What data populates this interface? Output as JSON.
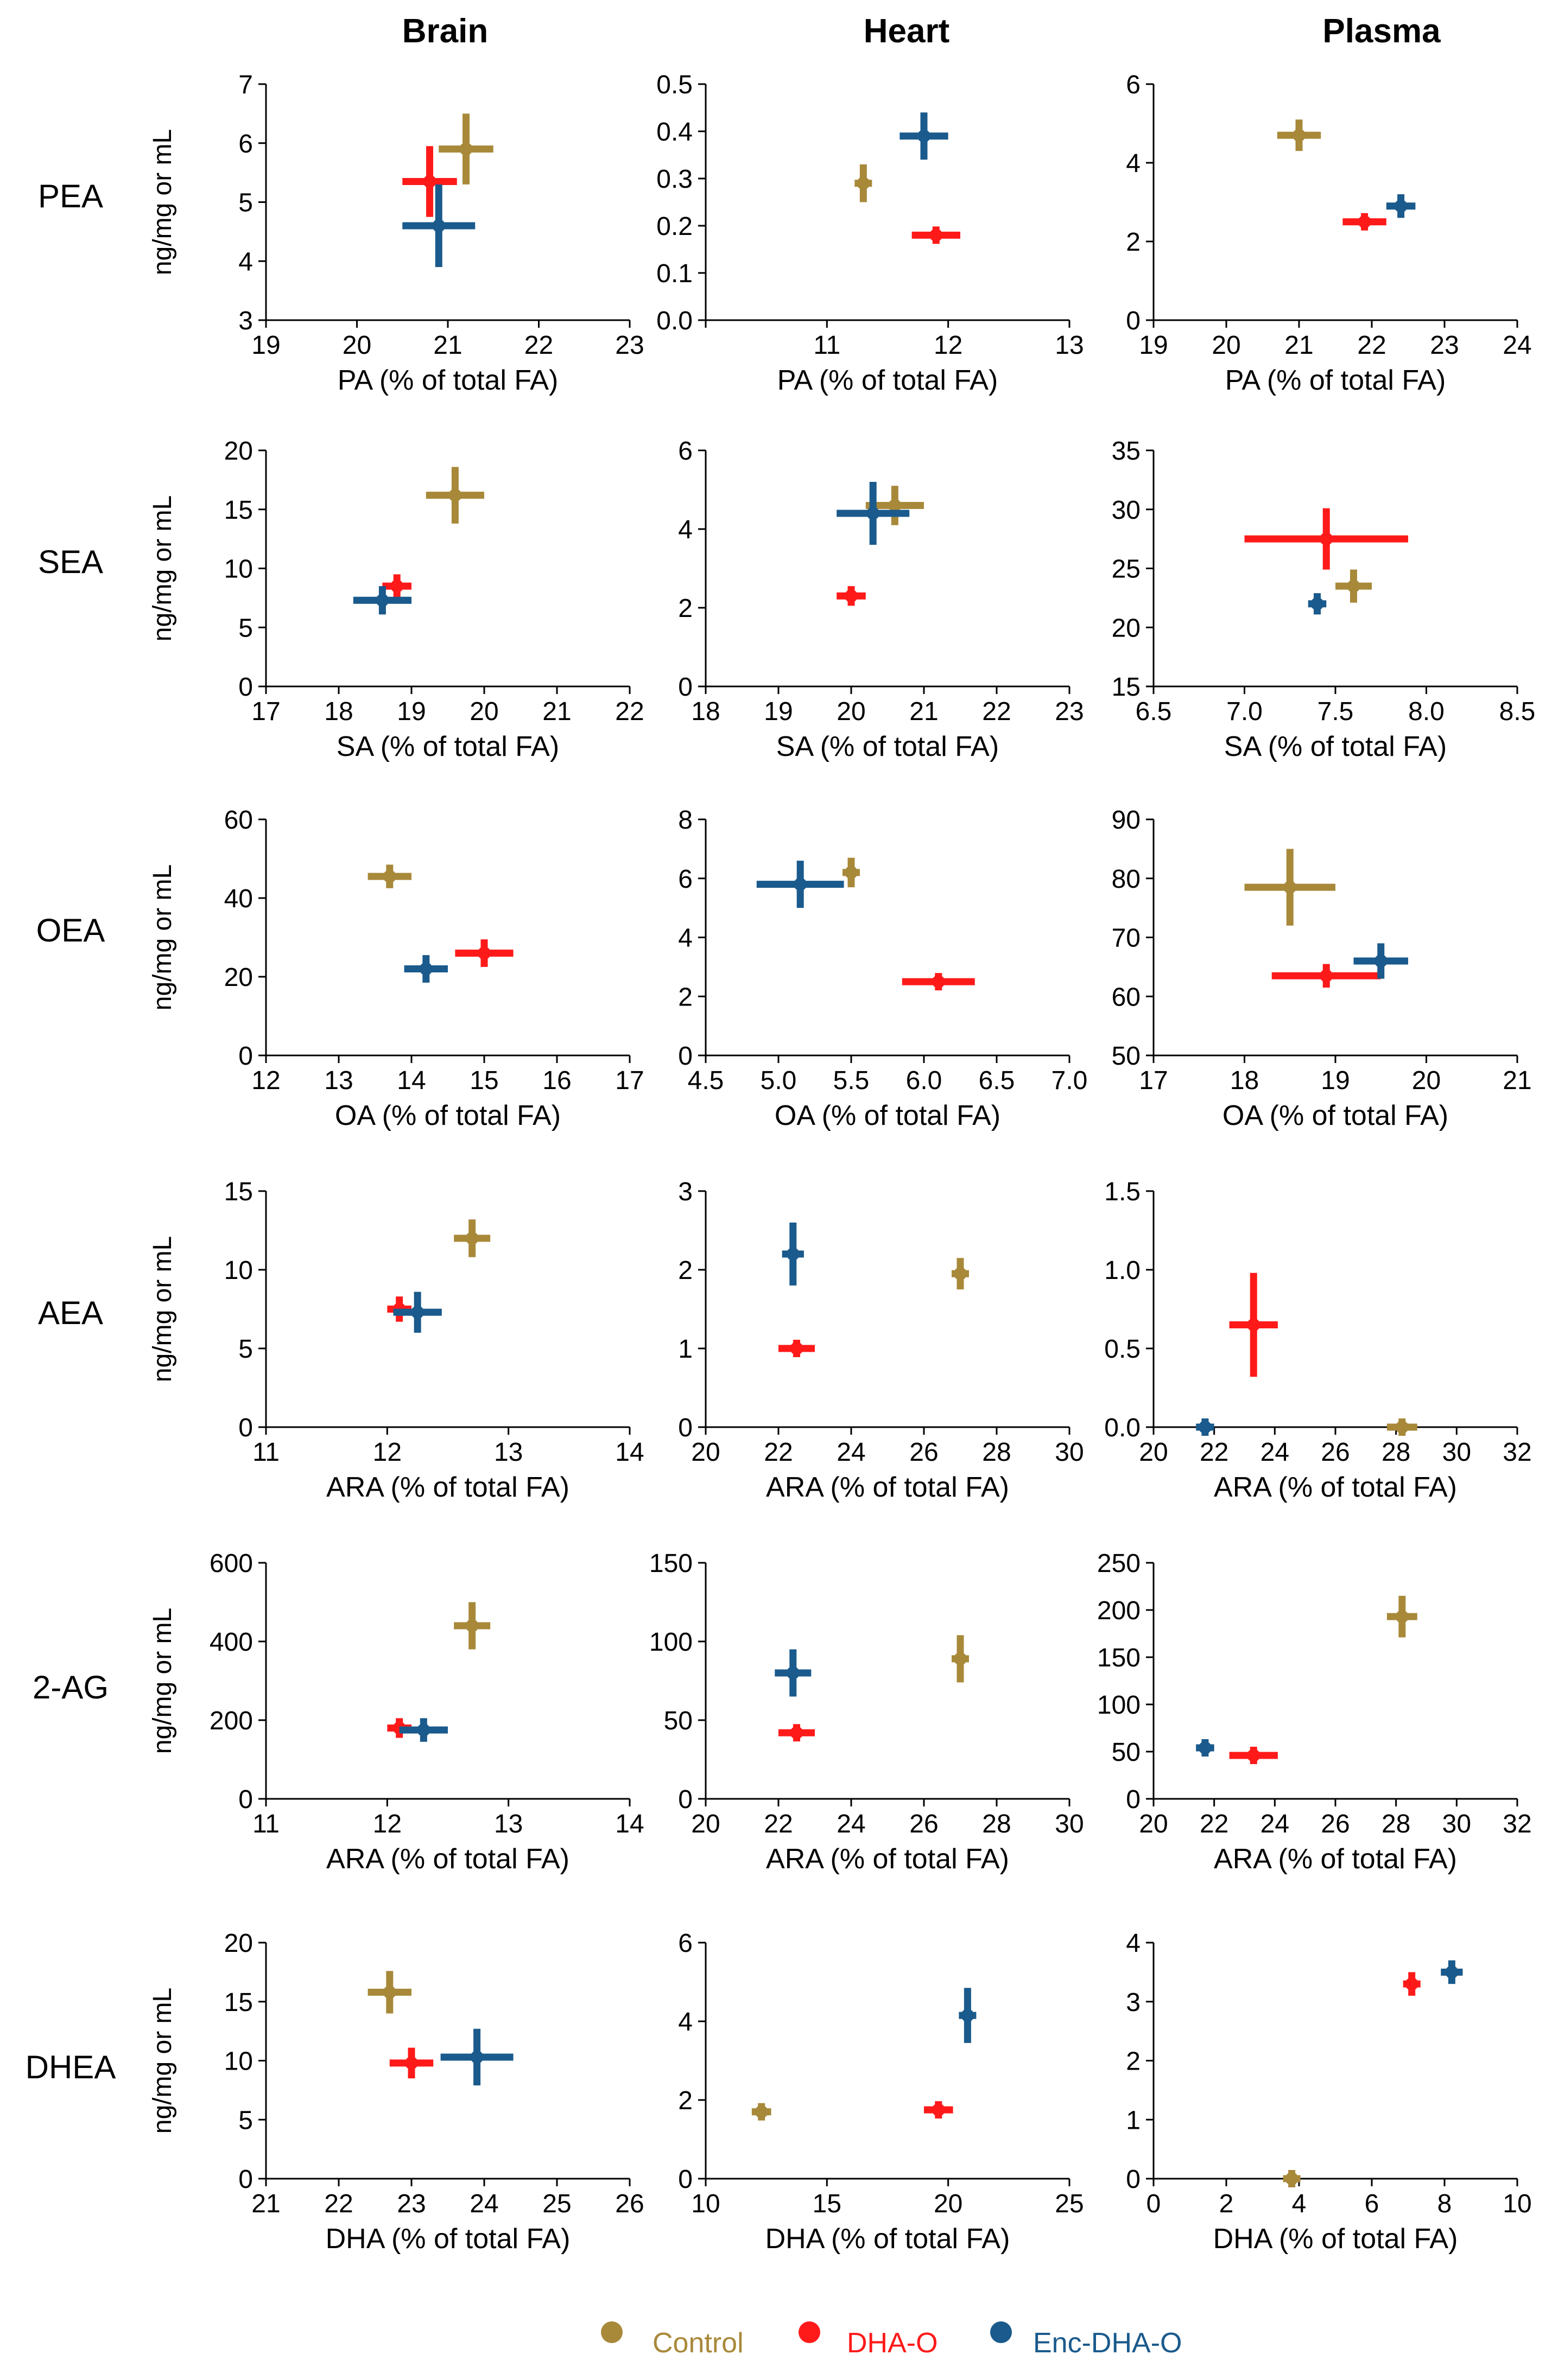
{
  "figure": {
    "column_headers": [
      "Brain",
      "Heart",
      "Plasma"
    ],
    "row_headers": [
      "PEA",
      "SEA",
      "OEA",
      "AEA",
      "2-AG",
      "DHEA"
    ],
    "y_axis_label": "ng/mg or mL",
    "legend": [
      {
        "label": "Control",
        "color": "#a8893a"
      },
      {
        "label": "DHA-O",
        "color": "#ff1a1a"
      },
      {
        "label": "Enc-DHA-O",
        "color": "#1a5a8c"
      }
    ]
  },
  "chart_data": [
    {
      "type": "scatter",
      "row": "PEA",
      "column": "Brain",
      "xlabel": "PA (% of total FA)",
      "ylabel": "ng/mg or mL",
      "xlim": [
        19,
        23
      ],
      "ylim": [
        3,
        7
      ],
      "xticks": [
        "19",
        "20",
        "21",
        "22",
        "23"
      ],
      "yticks": [
        "3",
        "4",
        "5",
        "6",
        "7"
      ],
      "series": [
        {
          "name": "Control",
          "x": 21.2,
          "y": 5.9,
          "xerr": 0.3,
          "yerr": 0.6
        },
        {
          "name": "DHA-O",
          "x": 20.8,
          "y": 5.35,
          "xerr": 0.3,
          "yerr": 0.6
        },
        {
          "name": "Enc-DHA-O",
          "x": 20.9,
          "y": 4.6,
          "xerr": 0.4,
          "yerr": 0.7
        }
      ]
    },
    {
      "type": "scatter",
      "row": "PEA",
      "column": "Heart",
      "xlabel": "PA (% of total FA)",
      "ylabel": "",
      "xlim": [
        10,
        13
      ],
      "ylim": [
        0,
        0.5
      ],
      "xticks": [
        "",
        "11",
        "12",
        "13"
      ],
      "yticks": [
        "0.0",
        "0.1",
        "0.2",
        "0.3",
        "0.4",
        "0.5"
      ],
      "series": [
        {
          "name": "Control",
          "x": 11.3,
          "y": 0.29,
          "xerr": 0.05,
          "yerr": 0.04
        },
        {
          "name": "DHA-O",
          "x": 11.9,
          "y": 0.18,
          "xerr": 0.2,
          "yerr": 0.015
        },
        {
          "name": "Enc-DHA-O",
          "x": 11.8,
          "y": 0.39,
          "xerr": 0.2,
          "yerr": 0.05
        }
      ]
    },
    {
      "type": "scatter",
      "row": "PEA",
      "column": "Plasma",
      "xlabel": "PA (% of total FA)",
      "ylabel": "",
      "xlim": [
        19,
        24
      ],
      "ylim": [
        0,
        6
      ],
      "xticks": [
        "19",
        "20",
        "21",
        "22",
        "23",
        "24"
      ],
      "yticks": [
        "0",
        "2",
        "4",
        "6"
      ],
      "series": [
        {
          "name": "Control",
          "x": 21.0,
          "y": 4.7,
          "xerr": 0.3,
          "yerr": 0.4
        },
        {
          "name": "DHA-O",
          "x": 21.9,
          "y": 2.5,
          "xerr": 0.3,
          "yerr": 0.2
        },
        {
          "name": "Enc-DHA-O",
          "x": 22.4,
          "y": 2.9,
          "xerr": 0.2,
          "yerr": 0.3
        }
      ]
    },
    {
      "type": "scatter",
      "row": "SEA",
      "column": "Brain",
      "xlabel": "SA (% of total FA)",
      "ylabel": "ng/mg or mL",
      "xlim": [
        17,
        22
      ],
      "ylim": [
        0,
        20
      ],
      "xticks": [
        "17",
        "18",
        "19",
        "20",
        "21",
        "22"
      ],
      "yticks": [
        "0",
        "5",
        "10",
        "15",
        "20"
      ],
      "series": [
        {
          "name": "Control",
          "x": 19.6,
          "y": 16.2,
          "xerr": 0.4,
          "yerr": 2.4
        },
        {
          "name": "DHA-O",
          "x": 18.8,
          "y": 8.5,
          "xerr": 0.2,
          "yerr": 1.0
        },
        {
          "name": "Enc-DHA-O",
          "x": 18.6,
          "y": 7.3,
          "xerr": 0.4,
          "yerr": 1.2
        }
      ]
    },
    {
      "type": "scatter",
      "row": "SEA",
      "column": "Heart",
      "xlabel": "SA (% of total FA)",
      "ylabel": "",
      "xlim": [
        18,
        23
      ],
      "ylim": [
        0,
        6
      ],
      "xticks": [
        "18",
        "19",
        "20",
        "21",
        "22",
        "23"
      ],
      "yticks": [
        "0",
        "2",
        "4",
        "6"
      ],
      "series": [
        {
          "name": "Control",
          "x": 20.6,
          "y": 4.6,
          "xerr": 0.4,
          "yerr": 0.5
        },
        {
          "name": "DHA-O",
          "x": 20.0,
          "y": 2.3,
          "xerr": 0.2,
          "yerr": 0.25
        },
        {
          "name": "Enc-DHA-O",
          "x": 20.3,
          "y": 4.4,
          "xerr": 0.5,
          "yerr": 0.8
        }
      ]
    },
    {
      "type": "scatter",
      "row": "SEA",
      "column": "Plasma",
      "xlabel": "SA (% of total FA)",
      "ylabel": "",
      "xlim": [
        6.5,
        8.5
      ],
      "ylim": [
        15,
        35
      ],
      "xticks": [
        "6.5",
        "7.0",
        "7.5",
        "8.0",
        "8.5"
      ],
      "yticks": [
        "15",
        "20",
        "25",
        "30",
        "35"
      ],
      "series": [
        {
          "name": "Control",
          "x": 7.6,
          "y": 23.5,
          "xerr": 0.1,
          "yerr": 1.4
        },
        {
          "name": "DHA-O",
          "x": 7.45,
          "y": 27.5,
          "xerr": 0.45,
          "yerr": 2.6
        },
        {
          "name": "Enc-DHA-O",
          "x": 7.4,
          "y": 22.0,
          "xerr": 0.05,
          "yerr": 0.9
        }
      ]
    },
    {
      "type": "scatter",
      "row": "OEA",
      "column": "Brain",
      "xlabel": "OA (% of total FA)",
      "ylabel": "ng/mg or mL",
      "xlim": [
        12,
        17
      ],
      "ylim": [
        0,
        60
      ],
      "xticks": [
        "12",
        "13",
        "14",
        "15",
        "16",
        "17"
      ],
      "yticks": [
        "0",
        "20",
        "40",
        "60"
      ],
      "series": [
        {
          "name": "Control",
          "x": 13.7,
          "y": 45.5,
          "xerr": 0.3,
          "yerr": 3
        },
        {
          "name": "DHA-O",
          "x": 15.0,
          "y": 26,
          "xerr": 0.4,
          "yerr": 3.5
        },
        {
          "name": "Enc-DHA-O",
          "x": 14.2,
          "y": 22,
          "xerr": 0.3,
          "yerr": 3.5
        }
      ]
    },
    {
      "type": "scatter",
      "row": "OEA",
      "column": "Heart",
      "xlabel": "OA (% of total FA)",
      "ylabel": "",
      "xlim": [
        4.5,
        7.0
      ],
      "ylim": [
        0,
        8
      ],
      "xticks": [
        "4.5",
        "5.0",
        "5.5",
        "6.0",
        "6.5",
        "7.0"
      ],
      "yticks": [
        "0",
        "2",
        "4",
        "6",
        "8"
      ],
      "series": [
        {
          "name": "Control",
          "x": 5.5,
          "y": 6.2,
          "xerr": 0.05,
          "yerr": 0.5
        },
        {
          "name": "DHA-O",
          "x": 6.1,
          "y": 2.5,
          "xerr": 0.25,
          "yerr": 0.15
        },
        {
          "name": "Enc-DHA-O",
          "x": 5.15,
          "y": 5.8,
          "xerr": 0.3,
          "yerr": 0.8
        }
      ]
    },
    {
      "type": "scatter",
      "row": "OEA",
      "column": "Plasma",
      "xlabel": "OA (% of total FA)",
      "ylabel": "",
      "xlim": [
        17,
        21
      ],
      "ylim": [
        50,
        90
      ],
      "xticks": [
        "17",
        "18",
        "19",
        "20",
        "21"
      ],
      "yticks": [
        "50",
        "60",
        "70",
        "80",
        "90"
      ],
      "series": [
        {
          "name": "Control",
          "x": 18.5,
          "y": 78.5,
          "xerr": 0.5,
          "yerr": 6.5
        },
        {
          "name": "DHA-O",
          "x": 18.9,
          "y": 63.5,
          "xerr": 0.6,
          "yerr": 2
        },
        {
          "name": "Enc-DHA-O",
          "x": 19.5,
          "y": 66,
          "xerr": 0.3,
          "yerr": 3
        }
      ]
    },
    {
      "type": "scatter",
      "row": "AEA",
      "column": "Brain",
      "xlabel": "ARA (% of total FA)",
      "ylabel": "ng/mg or mL",
      "xlim": [
        11,
        14
      ],
      "ylim": [
        0,
        15
      ],
      "xticks": [
        "11",
        "12",
        "13",
        "14"
      ],
      "yticks": [
        "0",
        "5",
        "10",
        "15"
      ],
      "series": [
        {
          "name": "Control",
          "x": 12.7,
          "y": 12.0,
          "xerr": 0.15,
          "yerr": 1.2
        },
        {
          "name": "DHA-O",
          "x": 12.1,
          "y": 7.5,
          "xerr": 0.1,
          "yerr": 0.8
        },
        {
          "name": "Enc-DHA-O",
          "x": 12.25,
          "y": 7.3,
          "xerr": 0.2,
          "yerr": 1.3
        }
      ]
    },
    {
      "type": "scatter",
      "row": "AEA",
      "column": "Heart",
      "xlabel": "ARA (% of total FA)",
      "ylabel": "",
      "xlim": [
        20,
        30
      ],
      "ylim": [
        0,
        3
      ],
      "xticks": [
        "20",
        "22",
        "24",
        "26",
        "28",
        "30"
      ],
      "yticks": [
        "0",
        "1",
        "2",
        "3"
      ],
      "series": [
        {
          "name": "Control",
          "x": 27.0,
          "y": 1.95,
          "xerr": 0.2,
          "yerr": 0.2
        },
        {
          "name": "DHA-O",
          "x": 22.5,
          "y": 1.0,
          "xerr": 0.5,
          "yerr": 0.05
        },
        {
          "name": "Enc-DHA-O",
          "x": 22.4,
          "y": 2.2,
          "xerr": 0.3,
          "yerr": 0.4
        }
      ]
    },
    {
      "type": "scatter",
      "row": "AEA",
      "column": "Plasma",
      "xlabel": "ARA (% of total FA)",
      "ylabel": "",
      "xlim": [
        20,
        32
      ],
      "ylim": [
        0,
        1.5
      ],
      "xticks": [
        "20",
        "22",
        "24",
        "26",
        "28",
        "30",
        "32"
      ],
      "yticks": [
        "0.0",
        "0.5",
        "1.0",
        "1.5"
      ],
      "series": [
        {
          "name": "Control",
          "x": 28.2,
          "y": 0.0,
          "xerr": 0.5,
          "yerr": 0.02
        },
        {
          "name": "DHA-O",
          "x": 23.3,
          "y": 0.65,
          "xerr": 0.8,
          "yerr": 0.33
        },
        {
          "name": "Enc-DHA-O",
          "x": 21.7,
          "y": 0.0,
          "xerr": 0.3,
          "yerr": 0.02
        }
      ]
    },
    {
      "type": "scatter",
      "row": "2-AG",
      "column": "Brain",
      "xlabel": "ARA (% of total FA)",
      "ylabel": "ng/mg or mL",
      "xlim": [
        11,
        14
      ],
      "ylim": [
        0,
        600
      ],
      "xticks": [
        "11",
        "12",
        "13",
        "14"
      ],
      "yticks": [
        "0",
        "200",
        "400",
        "600"
      ],
      "series": [
        {
          "name": "Control",
          "x": 12.7,
          "y": 440,
          "xerr": 0.15,
          "yerr": 60
        },
        {
          "name": "DHA-O",
          "x": 12.1,
          "y": 180,
          "xerr": 0.1,
          "yerr": 25
        },
        {
          "name": "Enc-DHA-O",
          "x": 12.3,
          "y": 175,
          "xerr": 0.2,
          "yerr": 30
        }
      ]
    },
    {
      "type": "scatter",
      "row": "2-AG",
      "column": "Heart",
      "xlabel": "ARA (% of total FA)",
      "ylabel": "",
      "xlim": [
        20,
        30
      ],
      "ylim": [
        0,
        150
      ],
      "xticks": [
        "20",
        "22",
        "24",
        "26",
        "28",
        "30"
      ],
      "yticks": [
        "0",
        "50",
        "100",
        "150"
      ],
      "series": [
        {
          "name": "Control",
          "x": 27.0,
          "y": 89,
          "xerr": 0.2,
          "yerr": 15
        },
        {
          "name": "DHA-O",
          "x": 22.5,
          "y": 42,
          "xerr": 0.5,
          "yerr": 4
        },
        {
          "name": "Enc-DHA-O",
          "x": 22.4,
          "y": 80,
          "xerr": 0.5,
          "yerr": 15
        }
      ]
    },
    {
      "type": "scatter",
      "row": "2-AG",
      "column": "Plasma",
      "xlabel": "ARA (% of total FA)",
      "ylabel": "",
      "xlim": [
        20,
        32
      ],
      "ylim": [
        0,
        250
      ],
      "xticks": [
        "20",
        "22",
        "24",
        "26",
        "28",
        "30",
        "32"
      ],
      "yticks": [
        "0",
        "50",
        "100",
        "150",
        "200",
        "250"
      ],
      "series": [
        {
          "name": "Control",
          "x": 28.2,
          "y": 193,
          "xerr": 0.5,
          "yerr": 22
        },
        {
          "name": "DHA-O",
          "x": 23.3,
          "y": 46,
          "xerr": 0.8,
          "yerr": 5
        },
        {
          "name": "Enc-DHA-O",
          "x": 21.7,
          "y": 54,
          "xerr": 0.3,
          "yerr": 6
        }
      ]
    },
    {
      "type": "scatter",
      "row": "DHEA",
      "column": "Brain",
      "xlabel": "DHA (% of total FA)",
      "ylabel": "ng/mg or mL",
      "xlim": [
        21,
        26
      ],
      "ylim": [
        0,
        20
      ],
      "xticks": [
        "21",
        "22",
        "23",
        "24",
        "25",
        "26"
      ],
      "yticks": [
        "0",
        "5",
        "10",
        "15",
        "20"
      ],
      "series": [
        {
          "name": "Control",
          "x": 22.7,
          "y": 15.8,
          "xerr": 0.3,
          "yerr": 1.8
        },
        {
          "name": "DHA-O",
          "x": 23.0,
          "y": 9.8,
          "xerr": 0.3,
          "yerr": 1.3
        },
        {
          "name": "Enc-DHA-O",
          "x": 23.9,
          "y": 10.3,
          "xerr": 0.5,
          "yerr": 2.4
        }
      ]
    },
    {
      "type": "scatter",
      "row": "DHEA",
      "column": "Heart",
      "xlabel": "DHA (% of total FA)",
      "ylabel": "",
      "xlim": [
        10,
        25
      ],
      "ylim": [
        0,
        6
      ],
      "xticks": [
        "10",
        "15",
        "20",
        "25"
      ],
      "yticks": [
        "0",
        "2",
        "4",
        "6"
      ],
      "series": [
        {
          "name": "Control",
          "x": 12.3,
          "y": 1.7,
          "xerr": 0.4,
          "yerr": 0.15
        },
        {
          "name": "DHA-O",
          "x": 19.6,
          "y": 1.75,
          "xerr": 0.6,
          "yerr": 0.15
        },
        {
          "name": "Enc-DHA-O",
          "x": 20.8,
          "y": 4.15,
          "xerr": 0.3,
          "yerr": 0.7
        }
      ]
    },
    {
      "type": "scatter",
      "row": "DHEA",
      "column": "Plasma",
      "xlabel": "DHA (% of total FA)",
      "ylabel": "",
      "xlim": [
        0,
        10
      ],
      "ylim": [
        0,
        4
      ],
      "xticks": [
        "0",
        "2",
        "4",
        "6",
        "8",
        "10"
      ],
      "yticks": [
        "0",
        "1",
        "2",
        "3",
        "4"
      ],
      "series": [
        {
          "name": "Control",
          "x": 3.8,
          "y": 0.0,
          "xerr": 0.2,
          "yerr": 0.03
        },
        {
          "name": "DHA-O",
          "x": 7.1,
          "y": 3.3,
          "xerr": 0.15,
          "yerr": 0.2
        },
        {
          "name": "Enc-DHA-O",
          "x": 8.2,
          "y": 3.5,
          "xerr": 0.3,
          "yerr": 0.2
        }
      ]
    }
  ]
}
